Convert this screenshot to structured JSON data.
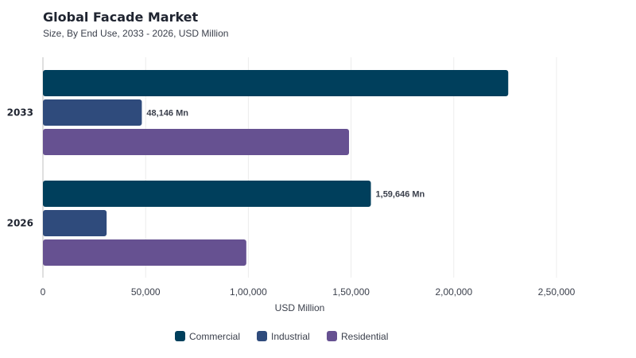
{
  "chart_data": {
    "type": "bar",
    "orientation": "horizontal",
    "title": "Global Facade Market",
    "subtitle": "Size, By End Use, 2033 - 2026, USD Million",
    "xlabel": "USD Million",
    "ylabel": "",
    "xlim": [
      0,
      250000
    ],
    "x_ticks": [
      0,
      50000,
      100000,
      150000,
      200000,
      250000
    ],
    "x_tick_labels": [
      "0",
      "50,000",
      "1,00,000",
      "1,50,000",
      "2,00,000",
      "2,50,000"
    ],
    "categories": [
      "2033",
      "2026"
    ],
    "series": [
      {
        "name": "Commercial",
        "color": "#003f5c",
        "values": [
          226500,
          159646
        ]
      },
      {
        "name": "Industrial",
        "color": "#2f4b7c",
        "values": [
          48146,
          31000
        ]
      },
      {
        "name": "Residential",
        "color": "#665191",
        "values": [
          149000,
          99000
        ]
      }
    ],
    "data_labels": [
      {
        "category": "2033",
        "series": "Industrial",
        "text": "48,146 Mn"
      },
      {
        "category": "2026",
        "series": "Commercial",
        "text": "1,59,646 Mn"
      }
    ],
    "grid": "vertical",
    "legend_position": "bottom"
  }
}
